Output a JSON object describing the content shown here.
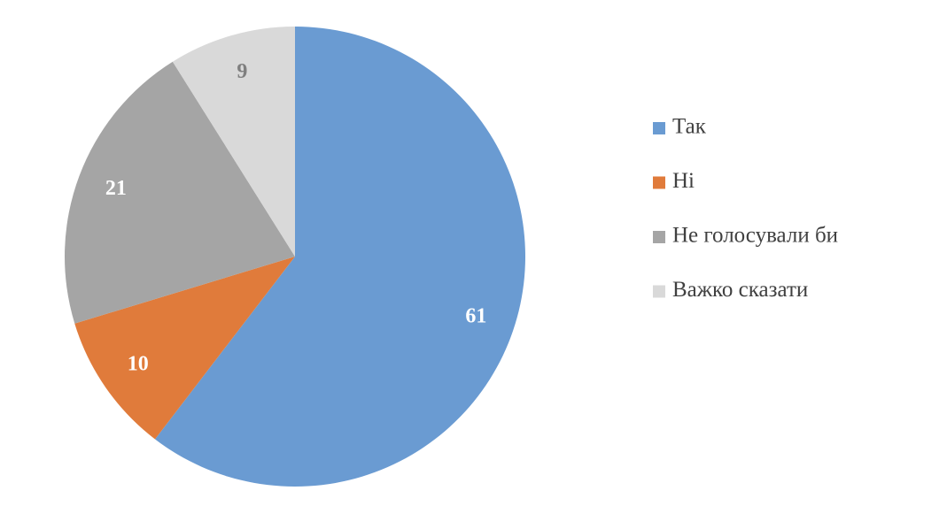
{
  "chart_data": {
    "type": "pie",
    "categories": [
      "Так",
      "Ні",
      "Не голосували би",
      "Важко сказати"
    ],
    "values": [
      61,
      10,
      21,
      9
    ],
    "colors": [
      "#6a9bd2",
      "#e07b3b",
      "#a5a5a5",
      "#d9d9d9"
    ],
    "legend": "right"
  }
}
